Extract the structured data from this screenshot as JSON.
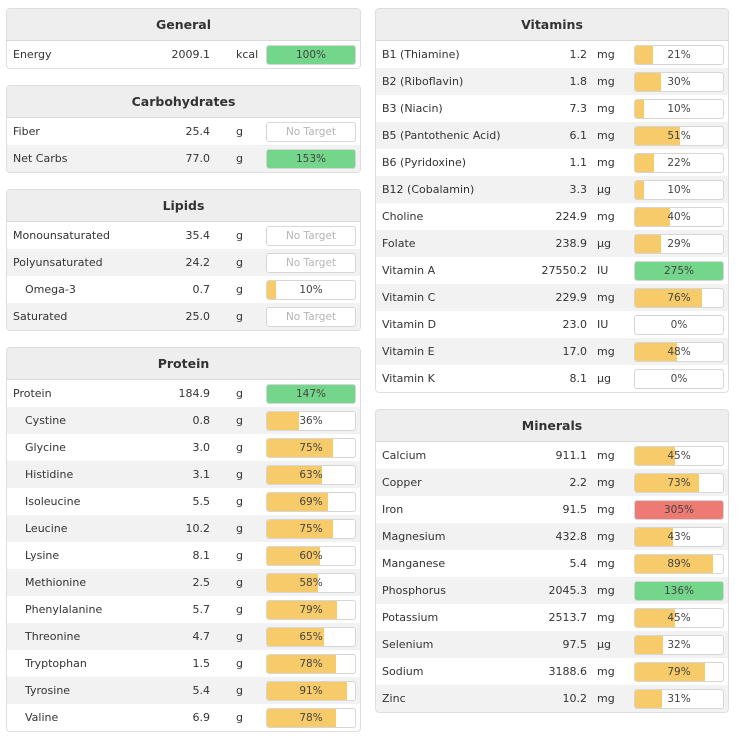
{
  "colors": {
    "green": "#74d68a",
    "yellow": "#f7cb6a",
    "red": "#ed7b73",
    "header_bg": "#eeeeee"
  },
  "panels": [
    {
      "id": "general",
      "column": "left",
      "title": "General",
      "rows": [
        {
          "name": "Energy",
          "amount": "2009.1",
          "unit": "kcal",
          "pct_label": "100%",
          "pct": 100,
          "status": "green"
        }
      ]
    },
    {
      "id": "carbohydrates",
      "column": "left",
      "title": "Carbohydrates",
      "rows": [
        {
          "name": "Fiber",
          "amount": "25.4",
          "unit": "g",
          "pct_label": "No Target",
          "pct": 0,
          "status": "none"
        },
        {
          "name": "Net Carbs",
          "amount": "77.0",
          "unit": "g",
          "pct_label": "153%",
          "pct": 153,
          "status": "green"
        }
      ]
    },
    {
      "id": "lipids",
      "column": "left",
      "title": "Lipids",
      "rows": [
        {
          "name": "Monounsaturated",
          "amount": "35.4",
          "unit": "g",
          "pct_label": "No Target",
          "pct": 0,
          "status": "none"
        },
        {
          "name": "Polyunsaturated",
          "amount": "24.2",
          "unit": "g",
          "pct_label": "No Target",
          "pct": 0,
          "status": "none"
        },
        {
          "name": "Omega-3",
          "amount": "0.7",
          "unit": "g",
          "pct_label": "10%",
          "pct": 10,
          "status": "yellow",
          "sub": true
        },
        {
          "name": "Saturated",
          "amount": "25.0",
          "unit": "g",
          "pct_label": "No Target",
          "pct": 0,
          "status": "none"
        }
      ]
    },
    {
      "id": "protein",
      "column": "left",
      "title": "Protein",
      "rows": [
        {
          "name": "Protein",
          "amount": "184.9",
          "unit": "g",
          "pct_label": "147%",
          "pct": 147,
          "status": "green"
        },
        {
          "name": "Cystine",
          "amount": "0.8",
          "unit": "g",
          "pct_label": "36%",
          "pct": 36,
          "status": "yellow",
          "sub": true
        },
        {
          "name": "Glycine",
          "amount": "3.0",
          "unit": "g",
          "pct_label": "75%",
          "pct": 75,
          "status": "yellow",
          "sub": true
        },
        {
          "name": "Histidine",
          "amount": "3.1",
          "unit": "g",
          "pct_label": "63%",
          "pct": 63,
          "status": "yellow",
          "sub": true
        },
        {
          "name": "Isoleucine",
          "amount": "5.5",
          "unit": "g",
          "pct_label": "69%",
          "pct": 69,
          "status": "yellow",
          "sub": true
        },
        {
          "name": "Leucine",
          "amount": "10.2",
          "unit": "g",
          "pct_label": "75%",
          "pct": 75,
          "status": "yellow",
          "sub": true
        },
        {
          "name": "Lysine",
          "amount": "8.1",
          "unit": "g",
          "pct_label": "60%",
          "pct": 60,
          "status": "yellow",
          "sub": true
        },
        {
          "name": "Methionine",
          "amount": "2.5",
          "unit": "g",
          "pct_label": "58%",
          "pct": 58,
          "status": "yellow",
          "sub": true
        },
        {
          "name": "Phenylalanine",
          "amount": "5.7",
          "unit": "g",
          "pct_label": "79%",
          "pct": 79,
          "status": "yellow",
          "sub": true
        },
        {
          "name": "Threonine",
          "amount": "4.7",
          "unit": "g",
          "pct_label": "65%",
          "pct": 65,
          "status": "yellow",
          "sub": true
        },
        {
          "name": "Tryptophan",
          "amount": "1.5",
          "unit": "g",
          "pct_label": "78%",
          "pct": 78,
          "status": "yellow",
          "sub": true
        },
        {
          "name": "Tyrosine",
          "amount": "5.4",
          "unit": "g",
          "pct_label": "91%",
          "pct": 91,
          "status": "yellow",
          "sub": true
        },
        {
          "name": "Valine",
          "amount": "6.9",
          "unit": "g",
          "pct_label": "78%",
          "pct": 78,
          "status": "yellow",
          "sub": true
        }
      ]
    },
    {
      "id": "vitamins",
      "column": "right",
      "title": "Vitamins",
      "rows": [
        {
          "name": "B1 (Thiamine)",
          "amount": "1.2",
          "unit": "mg",
          "pct_label": "21%",
          "pct": 21,
          "status": "yellow"
        },
        {
          "name": "B2 (Riboflavin)",
          "amount": "1.8",
          "unit": "mg",
          "pct_label": "30%",
          "pct": 30,
          "status": "yellow"
        },
        {
          "name": "B3 (Niacin)",
          "amount": "7.3",
          "unit": "mg",
          "pct_label": "10%",
          "pct": 10,
          "status": "yellow"
        },
        {
          "name": "B5 (Pantothenic Acid)",
          "amount": "6.1",
          "unit": "mg",
          "pct_label": "51%",
          "pct": 51,
          "status": "yellow"
        },
        {
          "name": "B6 (Pyridoxine)",
          "amount": "1.1",
          "unit": "mg",
          "pct_label": "22%",
          "pct": 22,
          "status": "yellow"
        },
        {
          "name": "B12 (Cobalamin)",
          "amount": "3.3",
          "unit": "µg",
          "pct_label": "10%",
          "pct": 10,
          "status": "yellow"
        },
        {
          "name": "Choline",
          "amount": "224.9",
          "unit": "mg",
          "pct_label": "40%",
          "pct": 40,
          "status": "yellow"
        },
        {
          "name": "Folate",
          "amount": "238.9",
          "unit": "µg",
          "pct_label": "29%",
          "pct": 29,
          "status": "yellow"
        },
        {
          "name": "Vitamin A",
          "amount": "27550.2",
          "unit": "IU",
          "pct_label": "275%",
          "pct": 275,
          "status": "green"
        },
        {
          "name": "Vitamin C",
          "amount": "229.9",
          "unit": "mg",
          "pct_label": "76%",
          "pct": 76,
          "status": "yellow"
        },
        {
          "name": "Vitamin D",
          "amount": "23.0",
          "unit": "IU",
          "pct_label": "0%",
          "pct": 0,
          "status": "yellow"
        },
        {
          "name": "Vitamin E",
          "amount": "17.0",
          "unit": "mg",
          "pct_label": "48%",
          "pct": 48,
          "status": "yellow"
        },
        {
          "name": "Vitamin K",
          "amount": "8.1",
          "unit": "µg",
          "pct_label": "0%",
          "pct": 0,
          "status": "yellow"
        }
      ]
    },
    {
      "id": "minerals",
      "column": "right",
      "title": "Minerals",
      "rows": [
        {
          "name": "Calcium",
          "amount": "911.1",
          "unit": "mg",
          "pct_label": "45%",
          "pct": 45,
          "status": "yellow"
        },
        {
          "name": "Copper",
          "amount": "2.2",
          "unit": "mg",
          "pct_label": "73%",
          "pct": 73,
          "status": "yellow"
        },
        {
          "name": "Iron",
          "amount": "91.5",
          "unit": "mg",
          "pct_label": "305%",
          "pct": 305,
          "status": "red"
        },
        {
          "name": "Magnesium",
          "amount": "432.8",
          "unit": "mg",
          "pct_label": "43%",
          "pct": 43,
          "status": "yellow"
        },
        {
          "name": "Manganese",
          "amount": "5.4",
          "unit": "mg",
          "pct_label": "89%",
          "pct": 89,
          "status": "yellow"
        },
        {
          "name": "Phosphorus",
          "amount": "2045.3",
          "unit": "mg",
          "pct_label": "136%",
          "pct": 136,
          "status": "green"
        },
        {
          "name": "Potassium",
          "amount": "2513.7",
          "unit": "mg",
          "pct_label": "45%",
          "pct": 45,
          "status": "yellow"
        },
        {
          "name": "Selenium",
          "amount": "97.5",
          "unit": "µg",
          "pct_label": "32%",
          "pct": 32,
          "status": "yellow"
        },
        {
          "name": "Sodium",
          "amount": "3188.6",
          "unit": "mg",
          "pct_label": "79%",
          "pct": 79,
          "status": "yellow"
        },
        {
          "name": "Zinc",
          "amount": "10.2",
          "unit": "mg",
          "pct_label": "31%",
          "pct": 31,
          "status": "yellow"
        }
      ]
    }
  ]
}
